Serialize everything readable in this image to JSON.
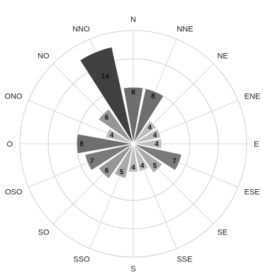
{
  "chart_data": {
    "type": "rose",
    "directions": [
      "N",
      "NNE",
      "NE",
      "ENE",
      "E",
      "ESE",
      "SE",
      "SSE",
      "S",
      "SSO",
      "SO",
      "OSO",
      "O",
      "ONO",
      "NO",
      "NNO"
    ],
    "values": [
      8,
      8,
      4,
      4,
      4,
      7,
      5,
      4,
      4,
      5,
      6,
      7,
      8,
      4,
      6,
      14
    ],
    "value_labels": [
      "8",
      "8",
      "4",
      "4",
      "4",
      "7",
      "5",
      "4",
      "4",
      "5",
      "6",
      "7",
      "8",
      "4",
      "6",
      "14"
    ],
    "rmax": 16,
    "rings": [
      4,
      8,
      12,
      16
    ],
    "colors": {
      "4": "#bdbdbd",
      "5": "#a9a9a9",
      "6": "#969696",
      "7": "#7a7a7a",
      "8": "#6e6e6e",
      "14": "#404040"
    },
    "grid": true
  }
}
